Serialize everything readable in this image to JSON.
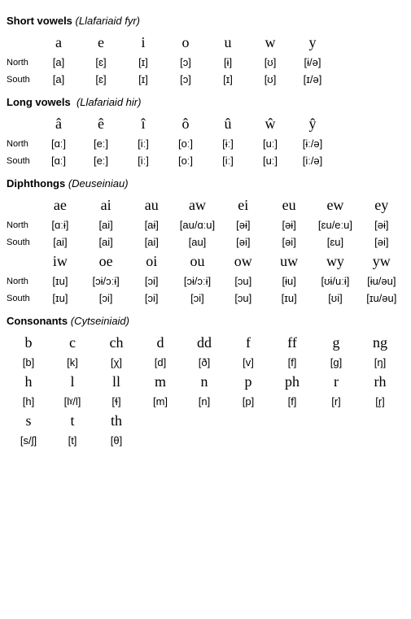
{
  "title_short_vowels": "Short vowels",
  "title_short_vowels_sub": "(Llafariaid fyr)",
  "title_long_vowels": "Long vowels",
  "title_long_vowels_sub": "(Llafariaid hir)",
  "title_diphthongs": "Diphthongs",
  "title_diphthongs_sub": "(Deuseiniau)",
  "title_consonants": "Consonants",
  "title_consonants_sub": "(Cytseiniaid)",
  "label_north": "North",
  "label_south": "South",
  "short": {
    "letters": [
      "a",
      "e",
      "i",
      "o",
      "u",
      "w",
      "y"
    ],
    "north": [
      "[a]",
      "[ɛ]",
      "[ɪ]",
      "[ɔ]",
      "[ɨ]",
      "[ʊ]",
      "[ɨ/ə]"
    ],
    "south": [
      "[a]",
      "[ɛ]",
      "[ɪ]",
      "[ɔ]",
      "[ɪ]",
      "[ʊ]",
      "[ɪ/ə]"
    ]
  },
  "long": {
    "letters": [
      "â",
      "ê",
      "î",
      "ô",
      "û",
      "ŵ",
      "ŷ"
    ],
    "north": [
      "[ɑː]",
      "[eː]",
      "[iː]",
      "[oː]",
      "[ɨː]",
      "[uː]",
      "[ɨː/ə]"
    ],
    "south": [
      "[ɑː]",
      "[eː]",
      "[iː]",
      "[oː]",
      "[iː]",
      "[uː]",
      "[iː/ə]"
    ]
  },
  "diph1": {
    "letters": [
      "ae",
      "ai",
      "au",
      "aw",
      "ei",
      "eu",
      "ew",
      "ey"
    ],
    "north": [
      "[ɑːɨ]",
      "[ai]",
      "[aɨ]",
      "[au/ɑːu]",
      "[əɨ]",
      "[əɨ]",
      "[ɛu/eːu]",
      "[əɨ]"
    ],
    "south": [
      "[ai]",
      "[ai]",
      "[ai]",
      "[au]",
      "[əi]",
      "[əi]",
      "[ɛu]",
      "[əi]"
    ]
  },
  "diph2": {
    "letters": [
      "iw",
      "oe",
      "oi",
      "ou",
      "ow",
      "uw",
      "wy",
      "yw"
    ],
    "north": [
      "[ɪu]",
      "[ɔɨ/ɔːɨ]",
      "[ɔi]",
      "[ɔɨ/ɔːɨ]",
      "[ɔu]",
      "[ɨu]",
      "[ʊɨ/uːɨ]",
      "[ɨu/əu]"
    ],
    "south": [
      "[ɪu]",
      "[ɔi]",
      "[ɔi]",
      "[ɔi]",
      "[ɔu]",
      "[ɪu]",
      "[ʊi]",
      "[ɪu/əu]"
    ]
  },
  "cons1": {
    "letters": [
      "b",
      "c",
      "ch",
      "d",
      "dd",
      "f",
      "ff",
      "g",
      "ng"
    ],
    "ipa": [
      "[b]",
      "[k]",
      "[χ]",
      "[d]",
      "[ð]",
      "[v]",
      "[f]",
      "[g]",
      "[ŋ]"
    ]
  },
  "cons2": {
    "letters": [
      "h",
      "l",
      "ll",
      "m",
      "n",
      "p",
      "ph",
      "r",
      "rh"
    ],
    "ipa": [
      "[h]",
      "[lˠ/l]",
      "[ɬ]",
      "[m]",
      "[n]",
      "[p]",
      "[f]",
      "[r]",
      "[r̥]"
    ]
  },
  "cons3": {
    "letters": [
      "s",
      "t",
      "th"
    ],
    "ipa": [
      "[s/ʃ]",
      "[t]",
      "[θ]"
    ]
  }
}
